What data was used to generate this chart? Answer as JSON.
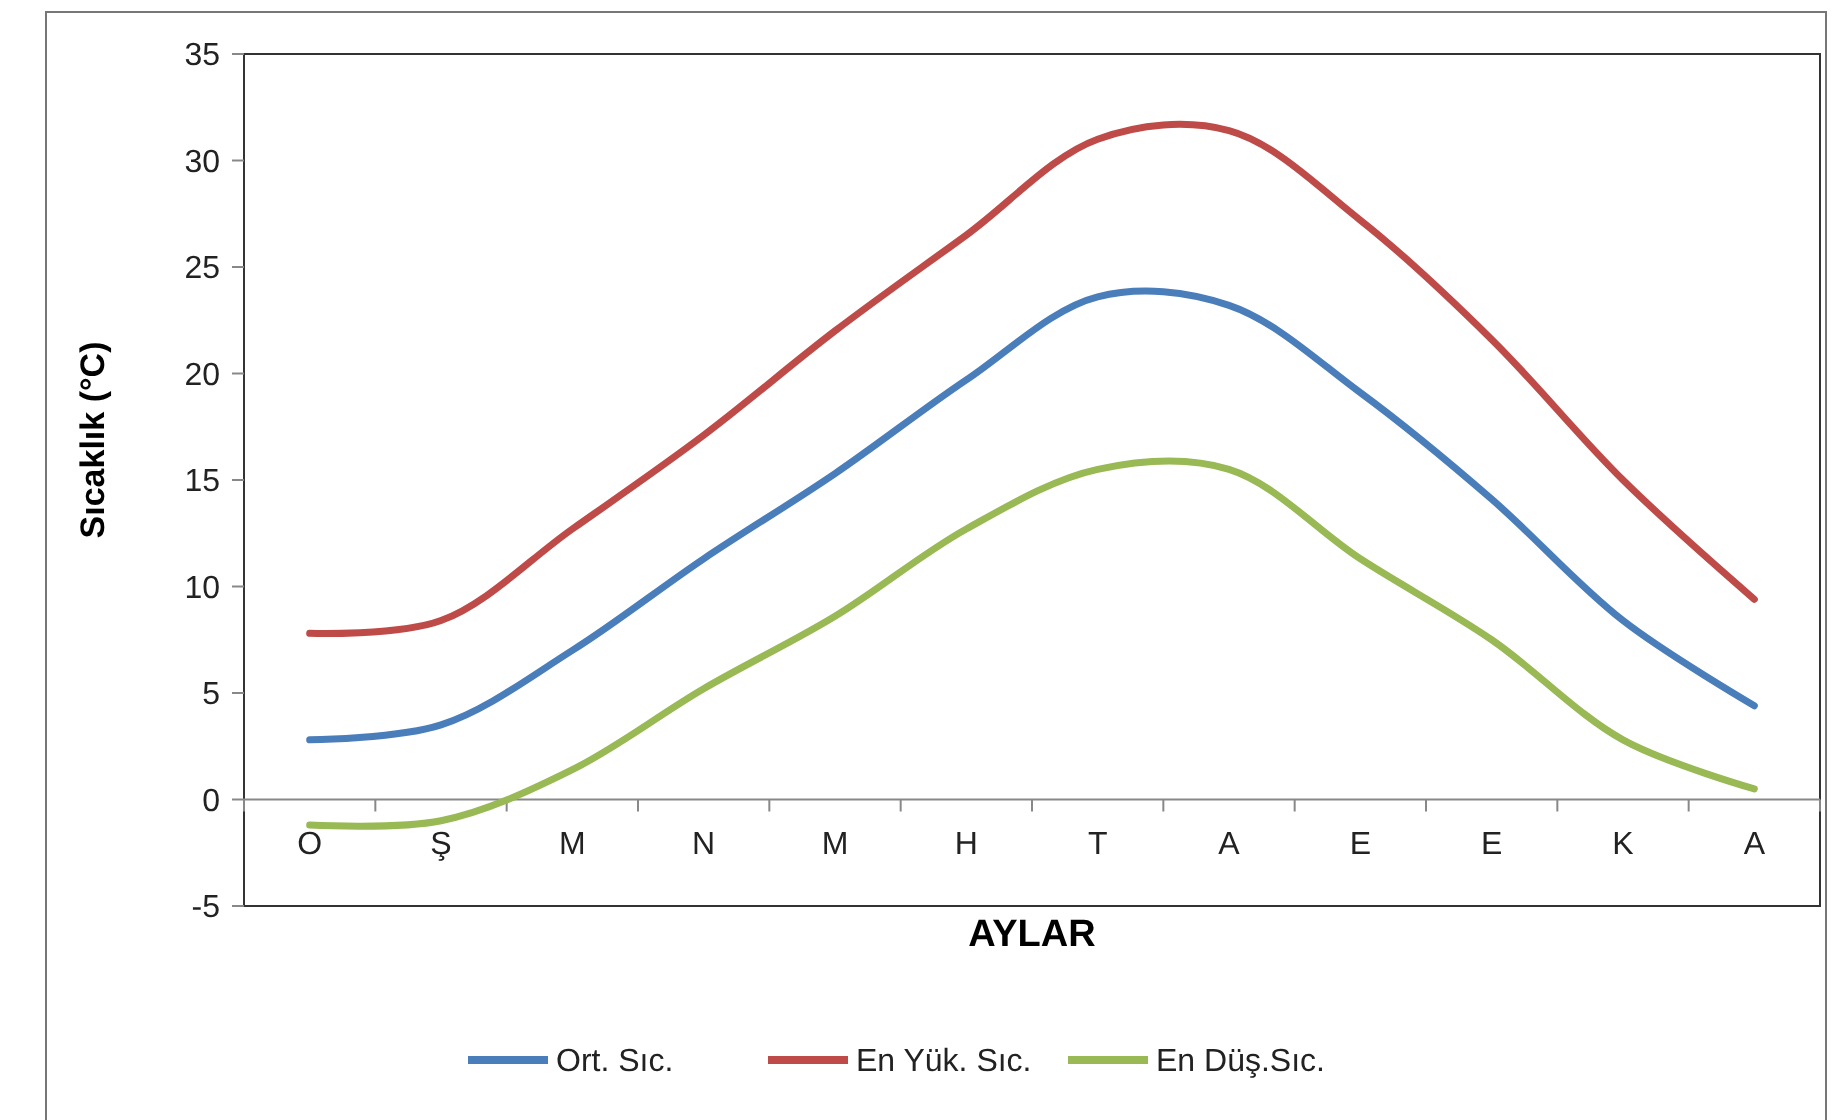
{
  "chart_data": {
    "type": "line",
    "xlabel": "AYLAR",
    "ylabel": "Sıcaklık (°C)",
    "categories": [
      "O",
      "Ş",
      "M",
      "N",
      "M",
      "H",
      "T",
      "A",
      "E",
      "E",
      "K",
      "A"
    ],
    "series": [
      {
        "name": "Ort. Sıc.",
        "color": "#4a7ebb",
        "values": [
          2.8,
          3.5,
          7.0,
          11.3,
          15.3,
          19.7,
          23.6,
          23.2,
          19.1,
          14.1,
          8.4,
          4.4
        ]
      },
      {
        "name": "En Yük. Sıc.",
        "color": "#be4b48",
        "values": [
          7.8,
          8.4,
          12.7,
          17.1,
          22.0,
          26.5,
          31.0,
          31.4,
          27.2,
          21.6,
          15.0,
          9.4
        ]
      },
      {
        "name": "En Düş.Sıc.",
        "color": "#98b954",
        "values": [
          -1.2,
          -1.0,
          1.4,
          5.2,
          8.6,
          12.7,
          15.5,
          15.5,
          11.3,
          7.5,
          2.8,
          0.5
        ]
      }
    ],
    "ylim": [
      -5,
      35
    ],
    "yticks": [
      -5,
      0,
      5,
      10,
      15,
      20,
      25,
      30,
      35
    ],
    "grid": false,
    "legend": "bottom",
    "marker": "none",
    "line_style": "solid"
  }
}
